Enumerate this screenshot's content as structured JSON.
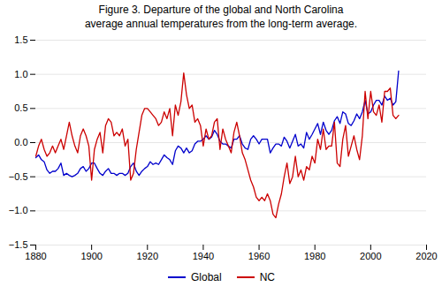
{
  "chart_data": {
    "type": "line",
    "title": "Figure 3.   Departure of the global and North Carolina\naverage annual temperatures from the long-term average.",
    "x": [
      1880,
      1881,
      1882,
      1883,
      1884,
      1885,
      1886,
      1887,
      1888,
      1889,
      1890,
      1891,
      1892,
      1893,
      1894,
      1895,
      1896,
      1897,
      1898,
      1899,
      1900,
      1901,
      1902,
      1903,
      1904,
      1905,
      1906,
      1907,
      1908,
      1909,
      1910,
      1911,
      1912,
      1913,
      1914,
      1915,
      1916,
      1917,
      1918,
      1919,
      1920,
      1921,
      1922,
      1923,
      1924,
      1925,
      1926,
      1927,
      1928,
      1929,
      1930,
      1931,
      1932,
      1933,
      1934,
      1935,
      1936,
      1937,
      1938,
      1939,
      1940,
      1941,
      1942,
      1943,
      1944,
      1945,
      1946,
      1947,
      1948,
      1949,
      1950,
      1951,
      1952,
      1953,
      1954,
      1955,
      1956,
      1957,
      1958,
      1959,
      1960,
      1961,
      1962,
      1963,
      1964,
      1965,
      1966,
      1967,
      1968,
      1969,
      1970,
      1971,
      1972,
      1973,
      1974,
      1975,
      1976,
      1977,
      1978,
      1979,
      1980,
      1981,
      1982,
      1983,
      1984,
      1985,
      1986,
      1987,
      1988,
      1989,
      1990,
      1991,
      1992,
      1993,
      1994,
      1995,
      1996,
      1997,
      1998,
      1999,
      2000,
      2001,
      2002,
      2003,
      2004,
      2005,
      2006,
      2007,
      2008,
      2009,
      2010
    ],
    "series": [
      {
        "name": "Global",
        "color": "#0000CC",
        "values": [
          -0.22,
          -0.18,
          -0.25,
          -0.28,
          -0.4,
          -0.45,
          -0.42,
          -0.42,
          -0.38,
          -0.3,
          -0.48,
          -0.45,
          -0.48,
          -0.5,
          -0.48,
          -0.45,
          -0.38,
          -0.35,
          -0.42,
          -0.38,
          -0.3,
          -0.3,
          -0.38,
          -0.45,
          -0.48,
          -0.42,
          -0.38,
          -0.45,
          -0.45,
          -0.48,
          -0.45,
          -0.45,
          -0.48,
          -0.45,
          -0.35,
          -0.3,
          -0.42,
          -0.48,
          -0.42,
          -0.38,
          -0.35,
          -0.28,
          -0.32,
          -0.3,
          -0.32,
          -0.25,
          -0.18,
          -0.22,
          -0.25,
          -0.32,
          -0.12,
          -0.05,
          -0.08,
          -0.15,
          -0.08,
          -0.15,
          -0.12,
          -0.02,
          0.02,
          0.02,
          0.05,
          0.1,
          0.05,
          0.08,
          0.18,
          0.12,
          0.02,
          -0.02,
          -0.02,
          -0.05,
          -0.08,
          0.05,
          0.05,
          0.1,
          -0.02,
          -0.08,
          -0.1,
          0.05,
          0.1,
          0.05,
          -0.02,
          0.05,
          0.05,
          0.05,
          -0.15,
          -0.08,
          -0.02,
          -0.02,
          -0.05,
          0.08,
          0.02,
          -0.08,
          0.02,
          0.12,
          -0.05,
          -0.02,
          -0.08,
          0.15,
          0.05,
          0.12,
          0.2,
          0.28,
          0.12,
          0.3,
          0.18,
          0.12,
          0.18,
          0.32,
          0.38,
          0.28,
          0.45,
          0.42,
          0.28,
          0.25,
          0.32,
          0.42,
          0.35,
          0.45,
          0.62,
          0.42,
          0.45,
          0.55,
          0.62,
          0.62,
          0.55,
          0.68,
          0.62,
          0.65,
          0.55,
          0.6,
          1.05
        ]
      },
      {
        "name": "NC",
        "color": "#CC0000",
        "values": [
          -0.2,
          -0.05,
          0.05,
          -0.1,
          -0.2,
          -0.15,
          -0.05,
          -0.15,
          -0.05,
          0.05,
          -0.1,
          0.1,
          0.3,
          0.1,
          -0.05,
          -0.15,
          0.1,
          0.2,
          0.1,
          -0.05,
          -0.55,
          -0.1,
          0.05,
          0.15,
          -0.15,
          0.25,
          0.35,
          0.3,
          0.1,
          0.15,
          0.1,
          0.2,
          -0.05,
          0.05,
          -0.55,
          -0.45,
          -0.1,
          0.15,
          0.4,
          0.5,
          0.5,
          0.45,
          0.4,
          0.35,
          0.25,
          0.3,
          0.45,
          0.35,
          0.5,
          0.1,
          0.55,
          0.4,
          0.6,
          1.02,
          0.7,
          0.5,
          0.55,
          0.3,
          0.35,
          0.25,
          -0.05,
          0.2,
          0.05,
          0.1,
          0.3,
          0.35,
          -0.1,
          0.2,
          0.05,
          -0.05,
          -0.15,
          0.15,
          0.3,
          0.1,
          -0.15,
          -0.25,
          -0.4,
          -0.55,
          -0.65,
          -0.8,
          -0.85,
          -0.8,
          -0.85,
          -0.75,
          -0.85,
          -1.05,
          -1.1,
          -0.9,
          -0.75,
          -0.5,
          -0.3,
          -0.6,
          -0.5,
          -0.2,
          -0.5,
          -0.4,
          -0.55,
          -0.35,
          -0.4,
          -0.2,
          -0.3,
          0.05,
          -0.1,
          0.2,
          -0.1,
          -0.05,
          -0.05,
          0.3,
          -0.3,
          -0.35,
          0.05,
          0.25,
          -0.2,
          -0.05,
          0.1,
          -0.1,
          -0.25,
          0.1,
          0.75,
          0.35,
          0.75,
          0.45,
          0.4,
          0.55,
          0.3,
          0.75,
          0.75,
          0.8,
          0.4,
          0.35,
          0.4
        ]
      }
    ],
    "xlim": [
      1880,
      2020
    ],
    "xticks": [
      1880,
      1900,
      1920,
      1940,
      1960,
      1980,
      2000,
      2020
    ],
    "ylim": [
      -1.5,
      1.5
    ],
    "yticks": [
      -1.5,
      {
        "value": -1.0,
        "label": "−1.0"
      },
      -0.5,
      {
        "value": 0.0,
        "label": "0.0"
      },
      0.5,
      {
        "value": 1.0,
        "label": "1.0"
      },
      1.5
    ],
    "grid": true,
    "legend": "bottom"
  }
}
